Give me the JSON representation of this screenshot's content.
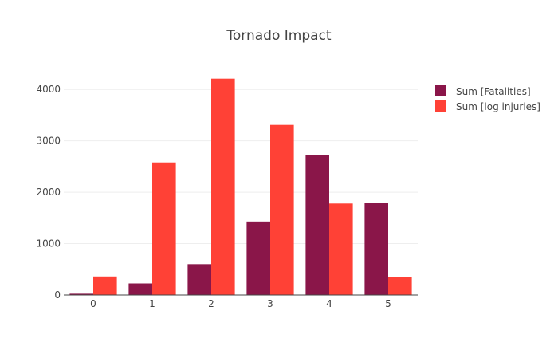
{
  "chart_data": {
    "type": "bar",
    "title": "Tornado Impact",
    "categories": [
      "0",
      "1",
      "2",
      "3",
      "4",
      "5"
    ],
    "series": [
      {
        "name": "Sum [Fatalities]",
        "color": "#8a1649",
        "values": [
          25,
          225,
          600,
          1430,
          2730,
          1790
        ]
      },
      {
        "name": "Sum [log injuries]",
        "color": "#ff4136",
        "values": [
          360,
          2580,
          4210,
          3310,
          1780,
          345
        ]
      }
    ],
    "yticks": [
      "0",
      "1000",
      "2000",
      "3000",
      "4000"
    ],
    "ylim": [
      0,
      4500
    ],
    "xlabel": "",
    "ylabel": "",
    "grid": true,
    "legend": "top-right"
  }
}
